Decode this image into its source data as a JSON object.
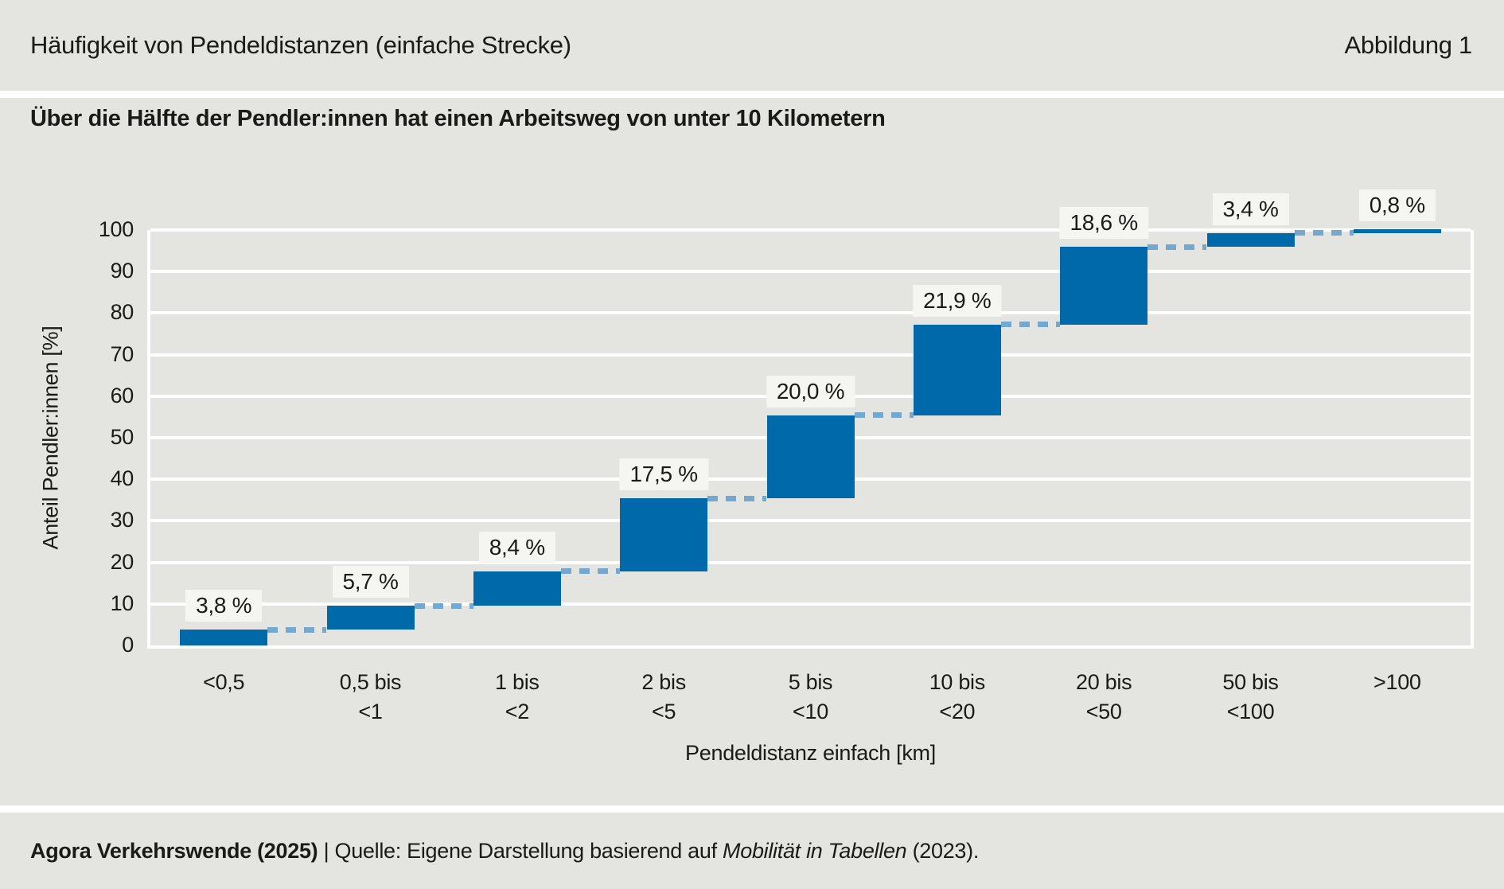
{
  "header": {
    "title": "Häufigkeit von Pendeldistanzen (einfache Strecke)",
    "figure_label": "Abbildung 1"
  },
  "chart": {
    "title": "Über die Hälfte der Pendler:innen hat einen Arbeitsweg von unter 10 Kilometern"
  },
  "chart_data": {
    "type": "bar",
    "subtype": "waterfall-cumulative",
    "categories": [
      [
        "<0,5"
      ],
      [
        "0,5 bis",
        "<1"
      ],
      [
        "1 bis",
        "<2"
      ],
      [
        "2 bis",
        "<5"
      ],
      [
        "5 bis",
        "<10"
      ],
      [
        "10 bis",
        "<20"
      ],
      [
        "20 bis",
        "<50"
      ],
      [
        "50 bis",
        "<100"
      ],
      [
        ">100"
      ]
    ],
    "values": [
      3.8,
      5.7,
      8.4,
      17.5,
      20.0,
      21.9,
      18.6,
      3.4,
      0.8
    ],
    "value_labels": [
      "3,8 %",
      "5,7 %",
      "8,4 %",
      "17,5 %",
      "20,0 %",
      "21,9 %",
      "18,6 %",
      "3,4 %",
      "0,8 %"
    ],
    "cumulative": [
      3.8,
      9.5,
      17.9,
      35.4,
      55.4,
      77.3,
      95.9,
      99.3,
      100.1
    ],
    "ylabel": "Anteil Pendler:innen [%]",
    "xlabel": "Pendeldistanz einfach [km]",
    "ylim": [
      0,
      100
    ],
    "yticks": [
      0,
      10,
      20,
      30,
      40,
      50,
      60,
      70,
      80,
      90,
      100
    ],
    "grid": true,
    "legend": "none",
    "colors": {
      "bar": "#0069a9",
      "connector": "#74a8ce",
      "panel_background": "#e4e4e0",
      "gridline": "#ffffff",
      "label_box": "#f5f5f2",
      "text": "#1a1a19"
    }
  },
  "footer": {
    "bold": "Agora Verkehrswende (2025)",
    "separator": "|",
    "text_before_italic": "Quelle: Eigene Darstellung basierend auf",
    "italic": "Mobilität in Tabellen",
    "text_after_italic": "(2023)."
  }
}
